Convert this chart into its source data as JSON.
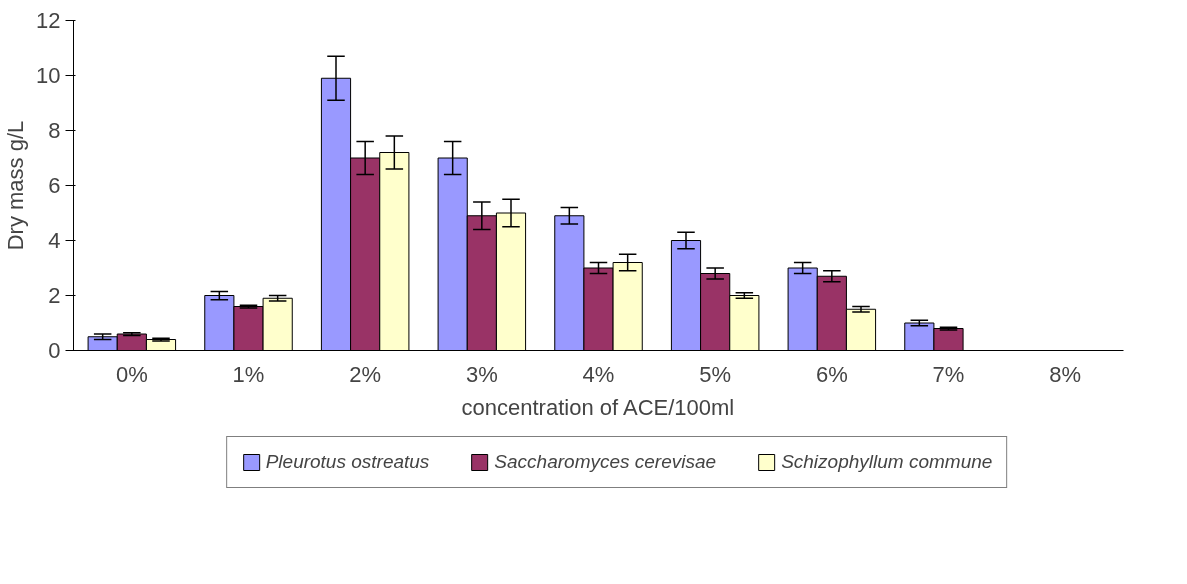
{
  "chart_data": {
    "type": "bar",
    "xlabel": "concentration of ACE/100ml",
    "ylabel": "Dry mass g/L",
    "categories": [
      "0%",
      "1%",
      "2%",
      "3%",
      "4%",
      "5%",
      "6%",
      "7%",
      "8%"
    ],
    "ylim": [
      0,
      12
    ],
    "yticks": [
      0,
      2,
      4,
      6,
      8,
      10,
      12
    ],
    "grid": false,
    "legend": "bottom",
    "series": [
      {
        "name": "Pleurotus ostreatus",
        "color": "#9999ff",
        "values": [
          0.5,
          2.0,
          9.9,
          7.0,
          4.9,
          4.0,
          3.0,
          1.0,
          null
        ],
        "errors": [
          0.1,
          0.15,
          0.8,
          0.6,
          0.3,
          0.3,
          0.2,
          0.1,
          null
        ]
      },
      {
        "name": "Saccharomyces cerevisae",
        "color": "#993366",
        "values": [
          0.6,
          1.6,
          7.0,
          4.9,
          3.0,
          2.8,
          2.7,
          0.8,
          null
        ],
        "errors": [
          0.05,
          0.05,
          0.6,
          0.5,
          0.2,
          0.2,
          0.2,
          0.05,
          null
        ]
      },
      {
        "name": "Schizophyllum commune",
        "color": "#ffffcc",
        "values": [
          0.4,
          1.9,
          7.2,
          5.0,
          3.2,
          2.0,
          1.5,
          null,
          null
        ],
        "errors": [
          0.05,
          0.1,
          0.6,
          0.5,
          0.3,
          0.1,
          0.1,
          null,
          null
        ]
      }
    ]
  }
}
